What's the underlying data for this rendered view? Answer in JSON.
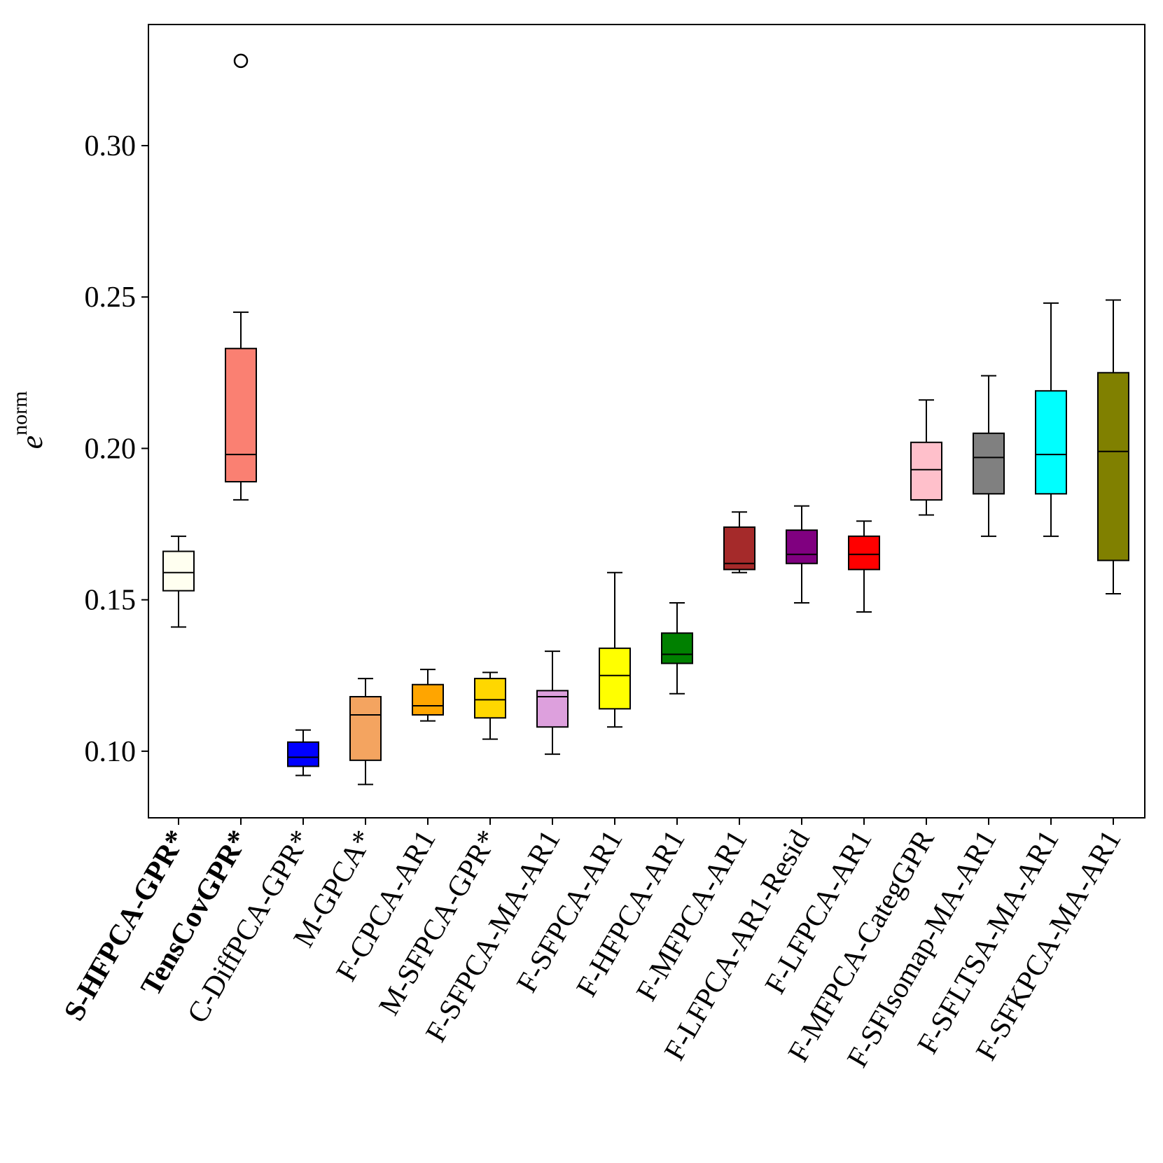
{
  "chart_data": {
    "type": "boxplot",
    "title": "",
    "xlabel": "",
    "ylabel": "e",
    "ylabel_superscript": "norm",
    "ylim": [
      0.078,
      0.34
    ],
    "yticks": [
      0.1,
      0.15,
      0.2,
      0.25,
      0.3
    ],
    "ytick_labels": [
      "0.10",
      "0.15",
      "0.20",
      "0.25",
      "0.30"
    ],
    "grid": false,
    "boxes": [
      {
        "label": "S-HFPCA-GPR*",
        "bold": true,
        "color": "#fffff0",
        "whisker_low": 0.141,
        "q1": 0.153,
        "median": 0.159,
        "q3": 0.166,
        "whisker_high": 0.171,
        "outliers": []
      },
      {
        "label": "TensCovGPR*",
        "bold": true,
        "color": "#fa8072",
        "whisker_low": 0.183,
        "q1": 0.189,
        "median": 0.198,
        "q3": 0.233,
        "whisker_high": 0.245,
        "outliers": [
          0.328
        ]
      },
      {
        "label": "C-DiffPCA-GPR*",
        "bold": false,
        "color": "#0000ff",
        "whisker_low": 0.092,
        "q1": 0.095,
        "median": 0.098,
        "q3": 0.103,
        "whisker_high": 0.107,
        "outliers": []
      },
      {
        "label": "M-GPCA*",
        "bold": false,
        "color": "#f4a460",
        "whisker_low": 0.089,
        "q1": 0.097,
        "median": 0.112,
        "q3": 0.118,
        "whisker_high": 0.124,
        "outliers": []
      },
      {
        "label": "F-CPCA-AR1",
        "bold": false,
        "color": "#ffa500",
        "whisker_low": 0.11,
        "q1": 0.112,
        "median": 0.115,
        "q3": 0.122,
        "whisker_high": 0.127,
        "outliers": []
      },
      {
        "label": "M-SFPCA-GPR*",
        "bold": false,
        "color": "#ffd700",
        "whisker_low": 0.104,
        "q1": 0.111,
        "median": 0.117,
        "q3": 0.124,
        "whisker_high": 0.126,
        "outliers": []
      },
      {
        "label": "F-SFPCA-MA-AR1",
        "bold": false,
        "color": "#dda0dd",
        "whisker_low": 0.099,
        "q1": 0.108,
        "median": 0.118,
        "q3": 0.12,
        "whisker_high": 0.133,
        "outliers": []
      },
      {
        "label": "F-SFPCA-AR1",
        "bold": false,
        "color": "#ffff00",
        "whisker_low": 0.108,
        "q1": 0.114,
        "median": 0.125,
        "q3": 0.134,
        "whisker_high": 0.159,
        "outliers": []
      },
      {
        "label": "F-HFPCA-AR1",
        "bold": false,
        "color": "#008000",
        "whisker_low": 0.119,
        "q1": 0.129,
        "median": 0.132,
        "q3": 0.139,
        "whisker_high": 0.149,
        "outliers": []
      },
      {
        "label": "F-MFPCA-AR1",
        "bold": false,
        "color": "#a52a2a",
        "whisker_low": 0.159,
        "q1": 0.16,
        "median": 0.162,
        "q3": 0.174,
        "whisker_high": 0.179,
        "outliers": []
      },
      {
        "label": "F-LFPCA-AR1-Resid",
        "bold": false,
        "color": "#800080",
        "whisker_low": 0.149,
        "q1": 0.162,
        "median": 0.165,
        "q3": 0.173,
        "whisker_high": 0.181,
        "outliers": []
      },
      {
        "label": "F-LFPCA-AR1",
        "bold": false,
        "color": "#ff0000",
        "whisker_low": 0.146,
        "q1": 0.16,
        "median": 0.165,
        "q3": 0.171,
        "whisker_high": 0.176,
        "outliers": []
      },
      {
        "label": "F-MFPCA-CategGPR",
        "bold": false,
        "color": "#ffc0cb",
        "whisker_low": 0.178,
        "q1": 0.183,
        "median": 0.193,
        "q3": 0.202,
        "whisker_high": 0.216,
        "outliers": []
      },
      {
        "label": "F-SFIsomap-MA-AR1",
        "bold": false,
        "color": "#808080",
        "whisker_low": 0.171,
        "q1": 0.185,
        "median": 0.197,
        "q3": 0.205,
        "whisker_high": 0.224,
        "outliers": []
      },
      {
        "label": "F-SFLTSA-MA-AR1",
        "bold": false,
        "color": "#00ffff",
        "whisker_low": 0.171,
        "q1": 0.185,
        "median": 0.198,
        "q3": 0.219,
        "whisker_high": 0.248,
        "outliers": []
      },
      {
        "label": "F-SFKPCA-MA-AR1",
        "bold": false,
        "color": "#808000",
        "whisker_low": 0.152,
        "q1": 0.163,
        "median": 0.199,
        "q3": 0.225,
        "whisker_high": 0.249,
        "outliers": []
      }
    ]
  }
}
